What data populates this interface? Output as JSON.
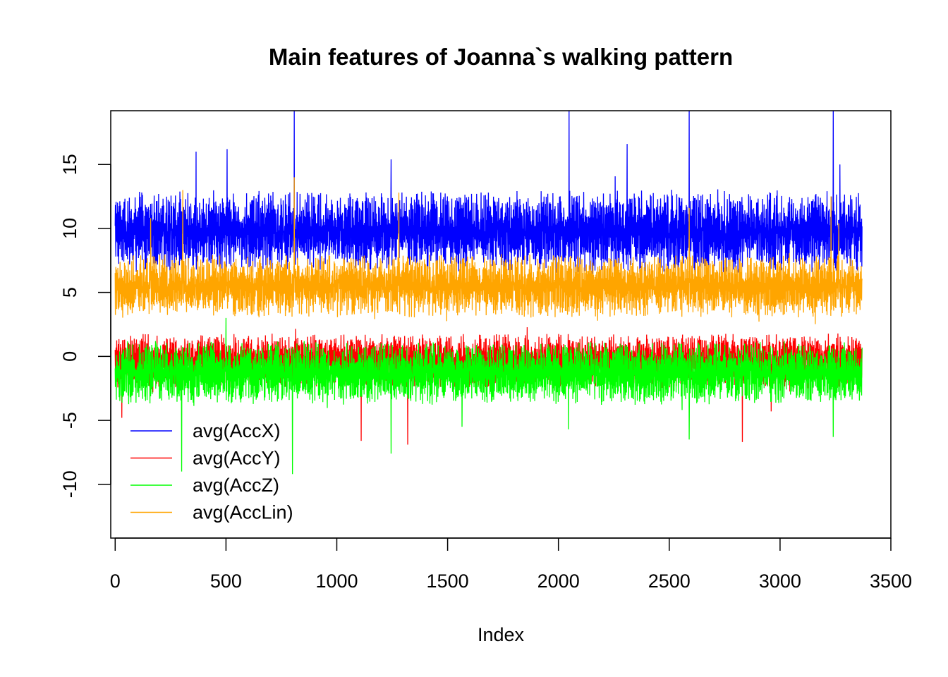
{
  "chart_data": {
    "type": "line",
    "title": "Main features of Joanna`s walking pattern",
    "xlabel": "Index",
    "ylabel": "",
    "xlim": [
      -20,
      3500
    ],
    "ylim": [
      -14.2,
      19.2
    ],
    "x_ticks": [
      0,
      500,
      1000,
      1500,
      2000,
      2500,
      3000,
      3500
    ],
    "y_ticks": [
      -10,
      -5,
      0,
      5,
      10,
      15
    ],
    "n_points": 3371,
    "legend_position": "bottom-left",
    "series": [
      {
        "name": "avg(AccX)",
        "color": "#0000ff",
        "typical_range": [
          6.5,
          13.0
        ],
        "mean": 10.0,
        "spikes": [
          [
            365,
            16.0
          ],
          [
            505,
            16.2
          ],
          [
            808,
            19.2
          ],
          [
            1245,
            15.4
          ],
          [
            2048,
            19.2
          ],
          [
            2310,
            16.6
          ],
          [
            2590,
            19.2
          ],
          [
            3240,
            19.2
          ],
          [
            3270,
            15.0
          ]
        ]
      },
      {
        "name": "avg(AccY)",
        "color": "#ff0000",
        "typical_range": [
          -2.5,
          1.8
        ],
        "mean": 0.0,
        "spikes": [
          [
            30,
            -4.8
          ],
          [
            1110,
            -6.6
          ],
          [
            1320,
            -6.9
          ],
          [
            2830,
            -6.7
          ],
          [
            2960,
            -4.3
          ]
        ]
      },
      {
        "name": "avg(AccZ)",
        "color": "#00ff00",
        "typical_range": [
          -3.8,
          1.2
        ],
        "mean": -1.2,
        "spikes": [
          [
            300,
            -9.0
          ],
          [
            500,
            3.0
          ],
          [
            800,
            -9.2
          ],
          [
            1245,
            -7.6
          ],
          [
            1565,
            -5.5
          ],
          [
            2045,
            -5.7
          ],
          [
            2590,
            -6.5
          ],
          [
            3240,
            -6.3
          ]
        ]
      },
      {
        "name": "avg(AccLin)",
        "color": "#ffa500",
        "typical_range": [
          3.0,
          8.0
        ],
        "mean": 5.2,
        "spikes": [
          [
            160,
            10.8
          ],
          [
            305,
            13.0
          ],
          [
            808,
            14.0
          ],
          [
            1280,
            12.8
          ],
          [
            2590,
            11.6
          ],
          [
            3230,
            12.5
          ],
          [
            3265,
            10.4
          ]
        ]
      }
    ]
  }
}
